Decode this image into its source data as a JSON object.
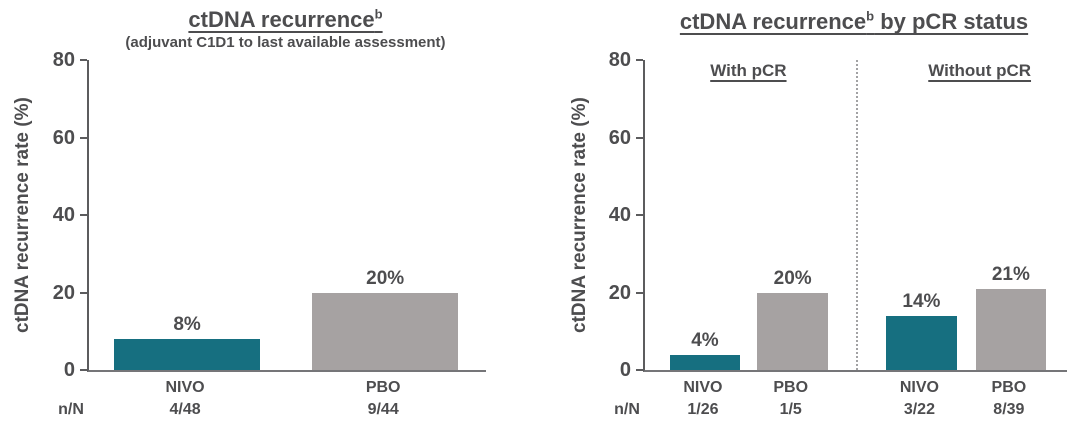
{
  "colors": {
    "nivo_bar": "#166f80",
    "pbo_bar": "#a6a2a2",
    "text": "#4d4d4f",
    "y_axis_line": "#5c5c5e",
    "x_axis_line": "#757578",
    "separator_dotted": "#a2a2a4"
  },
  "chart_data": [
    {
      "type": "bar",
      "title_main": "ctDNA recurrence",
      "title_sup": "b",
      "title_rest": "",
      "subtitle": "(adjuvant C1D1 to last available assessment)",
      "ylabel": "ctDNA recurrence rate (%)",
      "ylim": [
        0,
        80
      ],
      "yticks": [
        0,
        20,
        40,
        60,
        80
      ],
      "x_caption": "n/N",
      "grid": false,
      "groups": [
        {
          "header": "",
          "bars": [
            {
              "category": "NIVO",
              "value": 8,
              "value_label": "8%",
              "n_over_N": "4/48",
              "color": "#166f80"
            },
            {
              "category": "PBO",
              "value": 20,
              "value_label": "20%",
              "n_over_N": "9/44",
              "color": "#a6a2a2"
            }
          ]
        }
      ],
      "layout": {
        "bar_width_pct": 36.8,
        "centers_pct": [
          24.7,
          74.6
        ],
        "separator_pct": null,
        "header_centers_pct": []
      }
    },
    {
      "type": "bar",
      "title_main": "ctDNA recurrence",
      "title_sup": "b",
      "title_rest": " by pCR status",
      "subtitle": "",
      "ylabel": "ctDNA recurrence rate (%)",
      "ylim": [
        0,
        80
      ],
      "yticks": [
        0,
        20,
        40,
        60,
        80
      ],
      "x_caption": "n/N",
      "grid": false,
      "groups": [
        {
          "header": "With pCR",
          "bars": [
            {
              "category": "NIVO",
              "value": 4,
              "value_label": "4%",
              "n_over_N": "1/26",
              "color": "#166f80"
            },
            {
              "category": "PBO",
              "value": 20,
              "value_label": "20%",
              "n_over_N": "1/5",
              "color": "#a6a2a2"
            }
          ]
        },
        {
          "header": "Without pCR",
          "bars": [
            {
              "category": "NIVO",
              "value": 14,
              "value_label": "14%",
              "n_over_N": "3/22",
              "color": "#166f80"
            },
            {
              "category": "PBO",
              "value": 21,
              "value_label": "21%",
              "n_over_N": "8/39",
              "color": "#a6a2a2"
            }
          ]
        }
      ],
      "layout": {
        "bar_width_pct": 16.7,
        "centers_pct": [
          14.2,
          35.0,
          65.5,
          86.7
        ],
        "separator_pct": 50,
        "header_centers_pct": [
          24.5,
          79.3
        ]
      }
    }
  ]
}
